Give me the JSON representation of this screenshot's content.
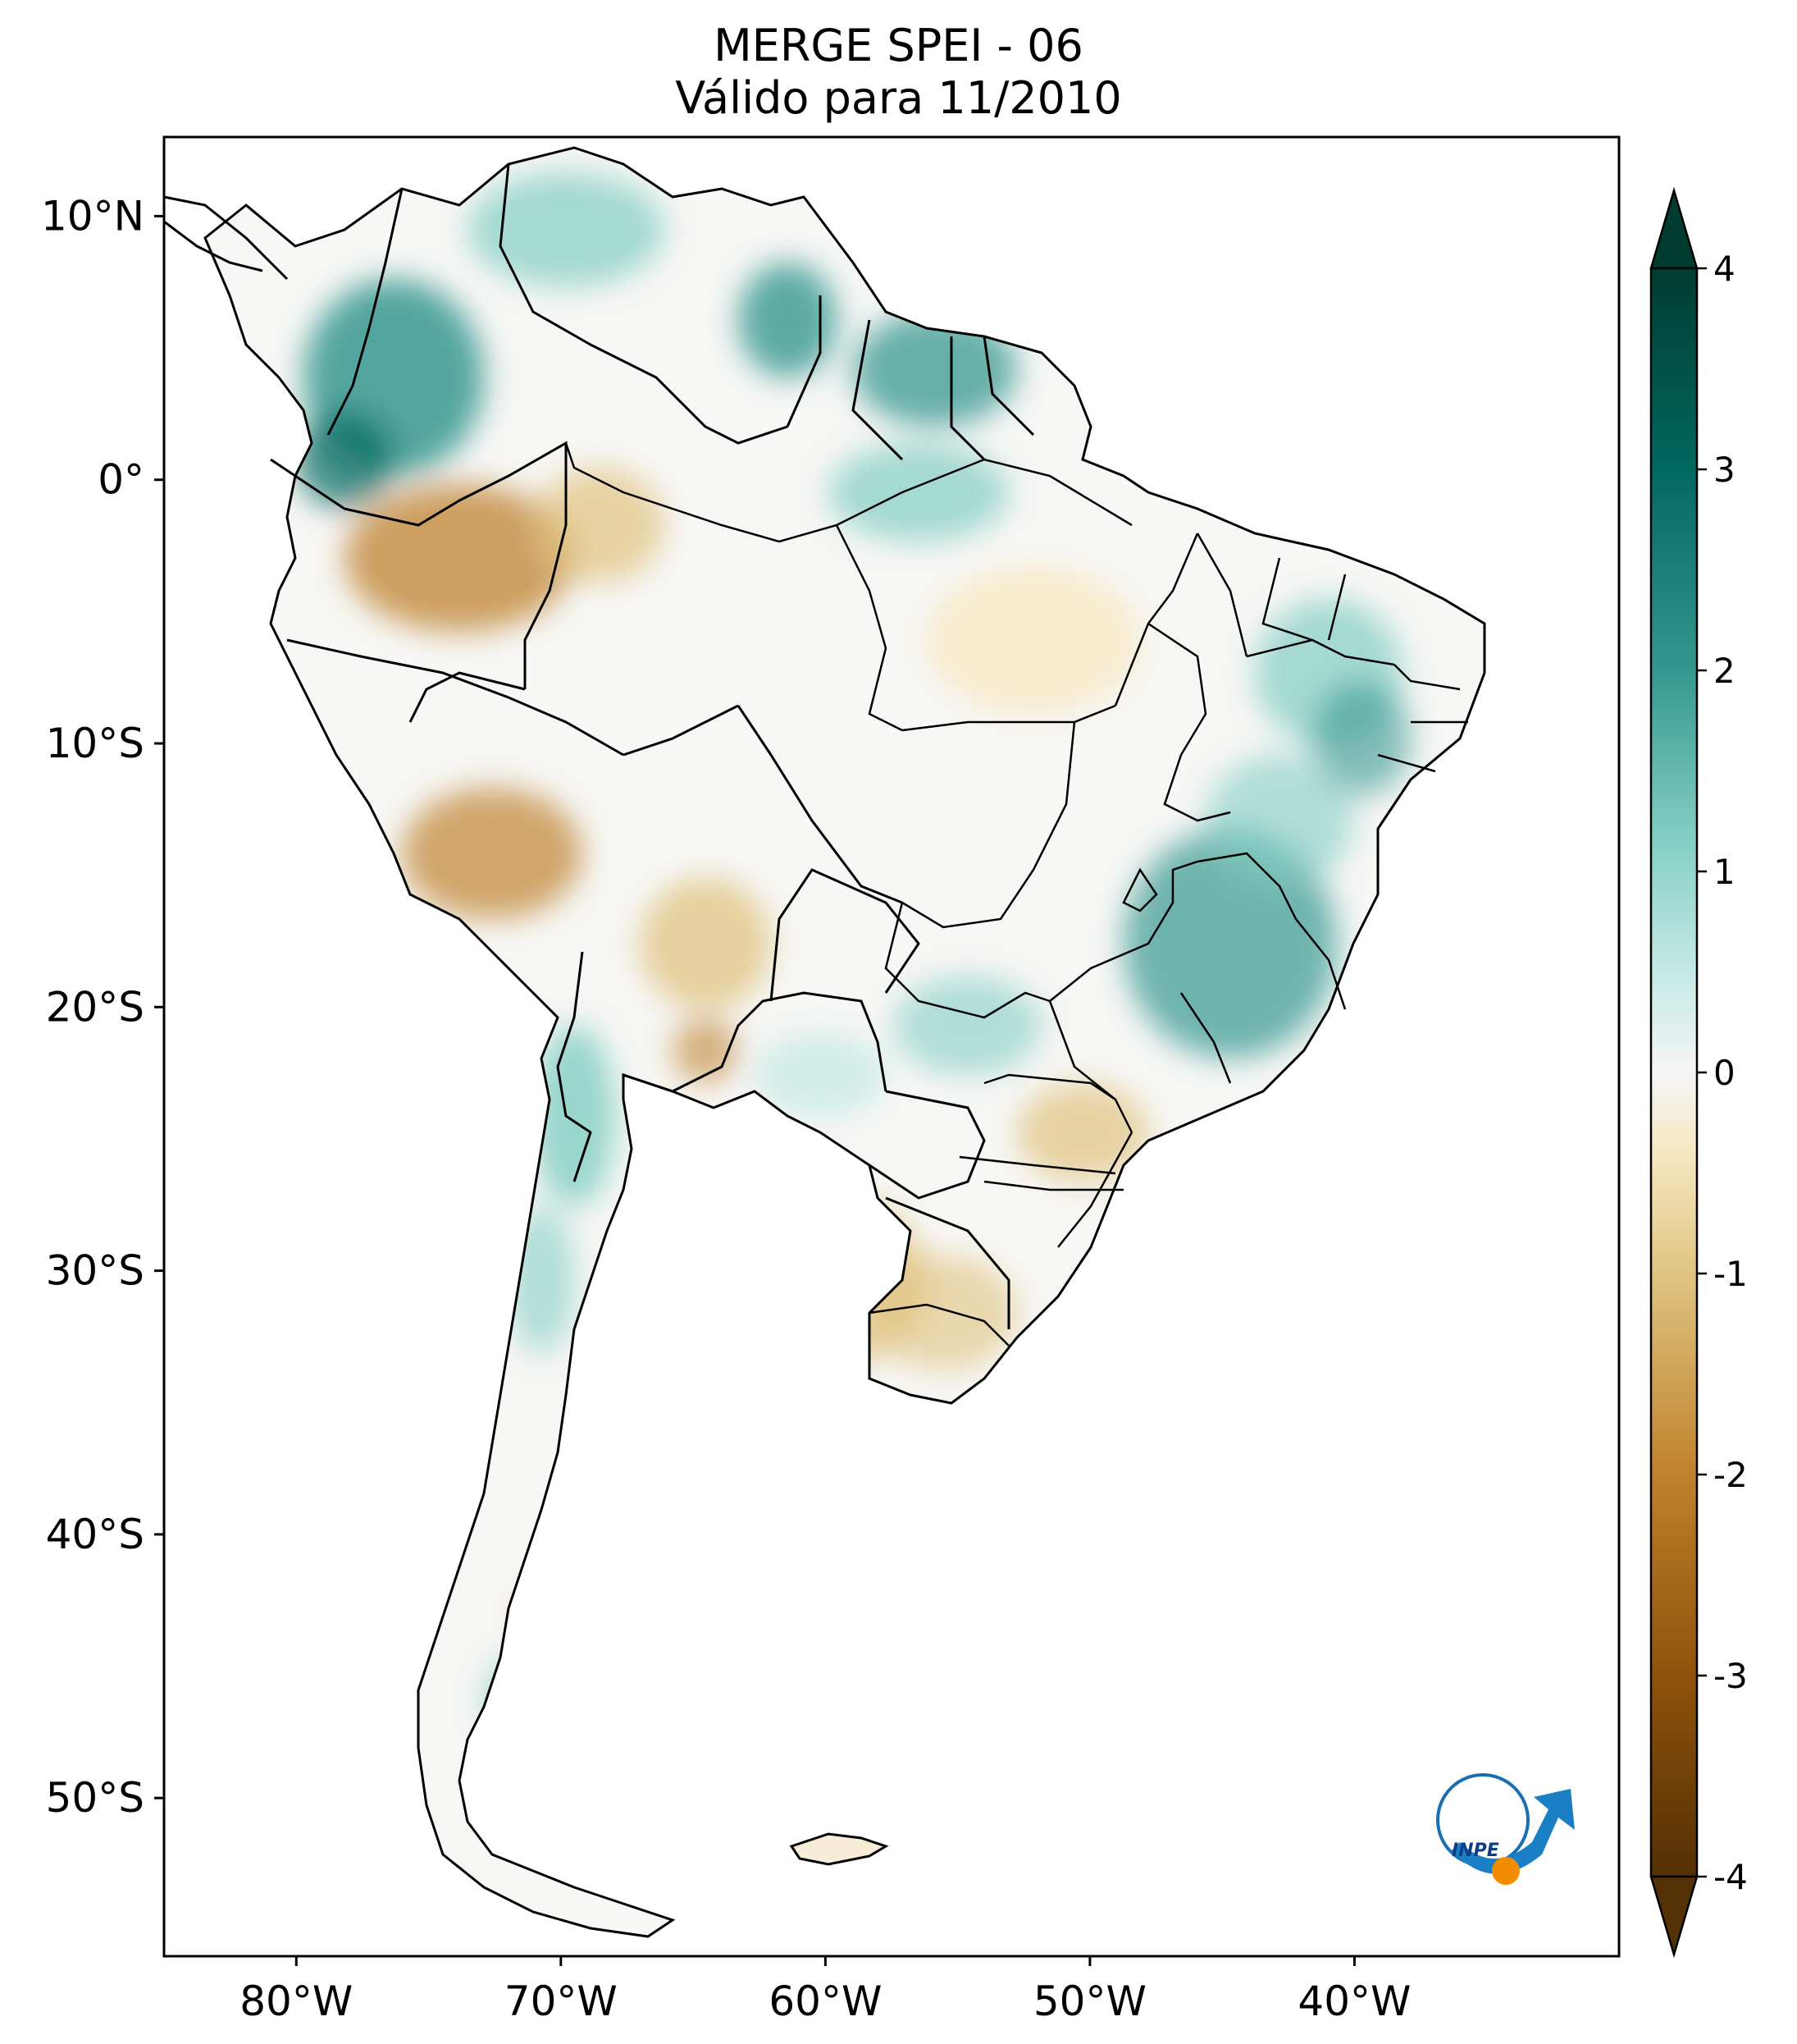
{
  "title": {
    "line1": "MERGE   SPEI - 06",
    "line2": "Válido para 11/2010"
  },
  "map": {
    "region": "South America",
    "variable": "SPEI - 06",
    "lat_labels": [
      "10°N",
      "0°",
      "10°S",
      "20°S",
      "30°S",
      "40°S",
      "50°S"
    ],
    "lat_values": [
      10,
      0,
      -10,
      -20,
      -30,
      -40,
      -50
    ],
    "lon_labels": [
      "80°W",
      "70°W",
      "60°W",
      "50°W",
      "40°W"
    ],
    "lon_values": [
      -80,
      -70,
      -60,
      -50,
      -40
    ],
    "lon_range": [
      -85,
      -30
    ],
    "lat_range": [
      -56,
      13
    ]
  },
  "colorbar": {
    "ticks": [
      "4",
      "3",
      "2",
      "1",
      "0",
      "-1",
      "-2",
      "-3",
      "-4"
    ],
    "tick_values": [
      4,
      3,
      2,
      1,
      0,
      -1,
      -2,
      -3,
      -4
    ],
    "range": [
      -4,
      4
    ],
    "colors": {
      "dry_extreme": "#543005",
      "dry_strong": "#8c510a",
      "dry_moderate": "#bf812d",
      "dry_mild": "#dfc27d",
      "dry_slight": "#f6e8c3",
      "neutral": "#f5f5f5",
      "wet_slight": "#c7eae5",
      "wet_mild": "#80cdc1",
      "wet_moderate": "#35978f",
      "wet_strong": "#01665e",
      "wet_extreme": "#003c30"
    }
  },
  "logo": {
    "text": "INPE"
  }
}
